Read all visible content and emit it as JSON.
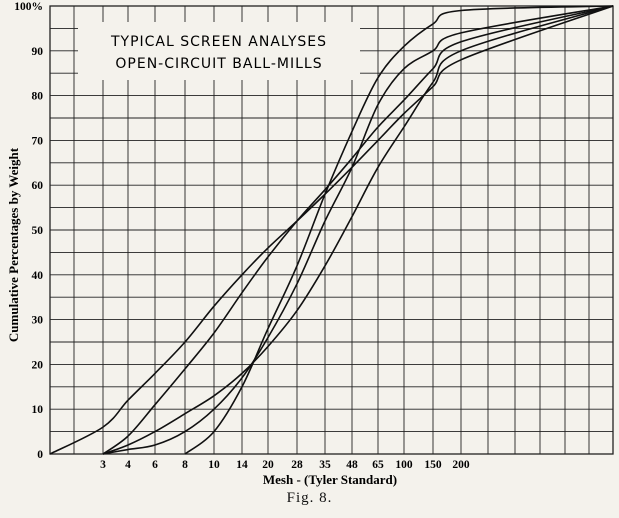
{
  "figure_caption": "Fig. 8.",
  "chart_data": {
    "type": "line",
    "title": "TYPICAL SCREEN ANALYSES OPEN-CIRCUIT BALL-MILLS",
    "title_lines": [
      "TYPICAL SCREEN ANALYSES",
      "OPEN-CIRCUIT BALL-MILLS"
    ],
    "xlabel": "Mesh - (Tyler Standard)",
    "ylabel": "Cumulative Percentages by Weight",
    "x_ticks": [
      "3",
      "4",
      "6",
      "8",
      "10",
      "14",
      "20",
      "28",
      "35",
      "48",
      "65",
      "100",
      "150",
      "200"
    ],
    "y_ticks": [
      "0",
      "10",
      "20",
      "30",
      "40",
      "50",
      "60",
      "70",
      "80",
      "90",
      "100%"
    ],
    "ylim": [
      0,
      100
    ],
    "grid": true,
    "line_color": "#111111",
    "grid_color": "#222222",
    "series": [
      {
        "x": [
          "start",
          "3",
          "4",
          "6",
          "8",
          "10",
          "14",
          "20",
          "28",
          "35",
          "48",
          "65",
          "100",
          "150",
          "200",
          "end"
        ],
        "values": [
          0,
          6,
          12,
          18,
          25,
          33,
          40,
          46,
          52,
          58,
          64,
          70,
          76,
          82,
          88,
          100
        ]
      },
      {
        "x": [
          "3",
          "4",
          "6",
          "8",
          "10",
          "14",
          "20",
          "28",
          "35",
          "48",
          "65",
          "100",
          "150",
          "200",
          "end"
        ],
        "values": [
          0,
          4,
          11,
          19,
          27,
          36,
          44,
          52,
          59,
          66,
          73,
          79,
          86,
          92,
          100
        ]
      },
      {
        "x": [
          "3",
          "4",
          "6",
          "8",
          "10",
          "14",
          "20",
          "28",
          "35",
          "48",
          "65",
          "100",
          "150",
          "200",
          "end"
        ],
        "values": [
          0,
          2,
          5,
          9,
          13,
          18,
          24,
          32,
          42,
          53,
          64,
          73,
          83,
          90,
          100
        ]
      },
      {
        "x": [
          "3",
          "4",
          "6",
          "8",
          "10",
          "14",
          "20",
          "28",
          "35",
          "48",
          "65",
          "100",
          "150",
          "200",
          "end"
        ],
        "values": [
          0,
          1,
          2,
          5,
          10,
          17,
          26,
          38,
          52,
          64,
          78,
          86,
          90,
          94,
          100
        ]
      },
      {
        "x": [
          "8",
          "10",
          "14",
          "20",
          "28",
          "35",
          "48",
          "65",
          "100",
          "150",
          "200",
          "end"
        ],
        "values": [
          0,
          5,
          15,
          28,
          42,
          58,
          72,
          84,
          91,
          96,
          99,
          100
        ]
      }
    ]
  }
}
